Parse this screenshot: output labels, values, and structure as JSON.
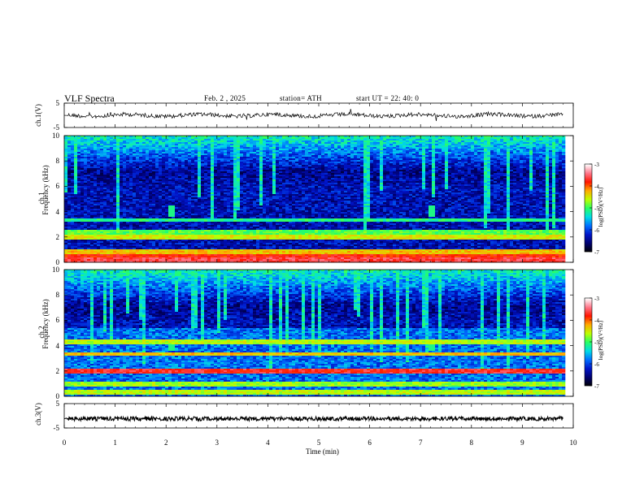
{
  "header": {
    "title": "VLF  Spectra",
    "date": "Feb. 2  , 2025",
    "station": "station= ATH",
    "start_ut": "start  UT  =    22: 40: 0"
  },
  "chart_data": [
    {
      "type": "line",
      "panel": "ch1-waveform",
      "ylabel": "ch.1(V)",
      "ylim": [
        -5,
        5
      ],
      "yticks": [
        "5",
        "-5"
      ],
      "baseline": 0,
      "xlim": [
        0,
        10
      ],
      "data_extent_min": 9.8
    },
    {
      "type": "heatmap",
      "panel": "ch1-spectrogram",
      "ylabel": "ch.1\nFrequency (kHz)",
      "ylim": [
        0,
        10
      ],
      "yticks": [
        "0",
        "2",
        "4",
        "6",
        "8",
        "10"
      ],
      "xlim": [
        0,
        10
      ],
      "data_extent_min": 9.8,
      "colorbar": {
        "label": "log(PSD)(V²/Hz)",
        "range": [
          -7,
          -3
        ],
        "ticks": [
          "-3",
          "-4",
          "-5",
          "-6",
          "-7"
        ]
      },
      "bursts_min": [
        2.1,
        7.2
      ],
      "bands_khz": [
        {
          "freq": 0.3,
          "level": -3.6
        },
        {
          "freq": 0.55,
          "level": -3.8
        },
        {
          "freq": 0.9,
          "level": -4.3
        },
        {
          "freq": 2.05,
          "level": -4.5
        },
        {
          "freq": 2.4,
          "level": -4.9
        },
        {
          "freq": 3.4,
          "level": -5.1
        }
      ]
    },
    {
      "type": "heatmap",
      "panel": "ch2-spectrogram",
      "ylabel": "ch.2\nFrequency (kHz)",
      "ylim": [
        0,
        10
      ],
      "yticks": [
        "0",
        "2",
        "4",
        "6",
        "8",
        "10"
      ],
      "xlim": [
        0,
        10
      ],
      "data_extent_min": 9.8,
      "colorbar": {
        "label": "log(PSD)(V²/Hz)",
        "range": [
          -7,
          -3
        ],
        "ticks": [
          "-3",
          "-4",
          "-5",
          "-6",
          "-7"
        ]
      },
      "bursts_min": [
        2.1,
        7.2
      ],
      "bands_khz": [
        {
          "freq": 0.4,
          "level": -4.6
        },
        {
          "freq": 1.0,
          "level": -4.7
        },
        {
          "freq": 2.1,
          "level": -3.7
        },
        {
          "freq": 3.4,
          "level": -4.3
        },
        {
          "freq": 4.4,
          "level": -4.6
        }
      ]
    },
    {
      "type": "line",
      "panel": "ch3-waveform",
      "ylabel": "ch.3(V)",
      "ylim": [
        -5,
        5
      ],
      "yticks": [
        "5",
        "-5"
      ],
      "baseline": -1.2,
      "xlim": [
        0,
        10
      ],
      "xlabel": "Time  (min)",
      "xticks": [
        "0",
        "1",
        "2",
        "3",
        "4",
        "5",
        "6",
        "7",
        "8",
        "9",
        "10"
      ],
      "data_extent_min": 9.8
    }
  ]
}
